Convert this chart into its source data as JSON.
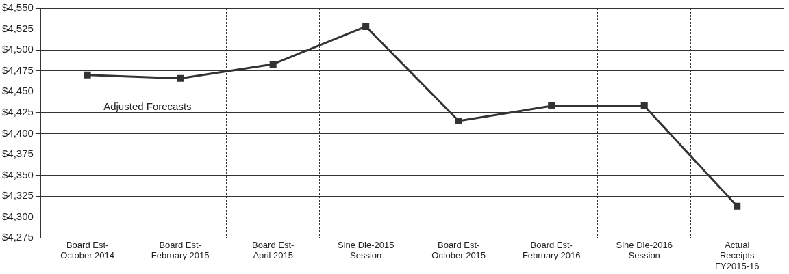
{
  "chart_data": {
    "type": "line",
    "categories": [
      "Board Est-\nOctober 2014",
      "Board Est-\nFebruary 2015",
      "Board Est-\nApril 2015",
      "Sine Die-2015\nSession",
      "Board Est-\nOctober 2015",
      "Board Est-\nFebruary 2016",
      "Sine Die-2016\nSession",
      "Actual\nReceipts\nFY2015-16"
    ],
    "series": [
      {
        "color": "#333333",
        "values": [
          4470,
          4466,
          4483,
          4528,
          4415,
          4433,
          4433,
          4313
        ]
      }
    ],
    "ylim": [
      4275,
      4550
    ],
    "yticks": [
      {
        "value": 4275,
        "label": "$4,275"
      },
      {
        "value": 4300,
        "label": "$4,300"
      },
      {
        "value": 4325,
        "label": "$4,325"
      },
      {
        "value": 4350,
        "label": "$4,350"
      },
      {
        "value": 4375,
        "label": "$4,375"
      },
      {
        "value": 4400,
        "label": "$4,400"
      },
      {
        "value": 4425,
        "label": "$4,425"
      },
      {
        "value": 4450,
        "label": "$4,450"
      },
      {
        "value": 4475,
        "label": "$4,475"
      },
      {
        "value": 4500,
        "label": "$4,500"
      },
      {
        "value": 4525,
        "label": "$4,525"
      },
      {
        "value": 4550,
        "label": "$4,550"
      }
    ],
    "grid": true,
    "marker": "square",
    "line_style": "solid",
    "legend": false,
    "annotations": [
      "Adjusted Forecasts"
    ]
  }
}
